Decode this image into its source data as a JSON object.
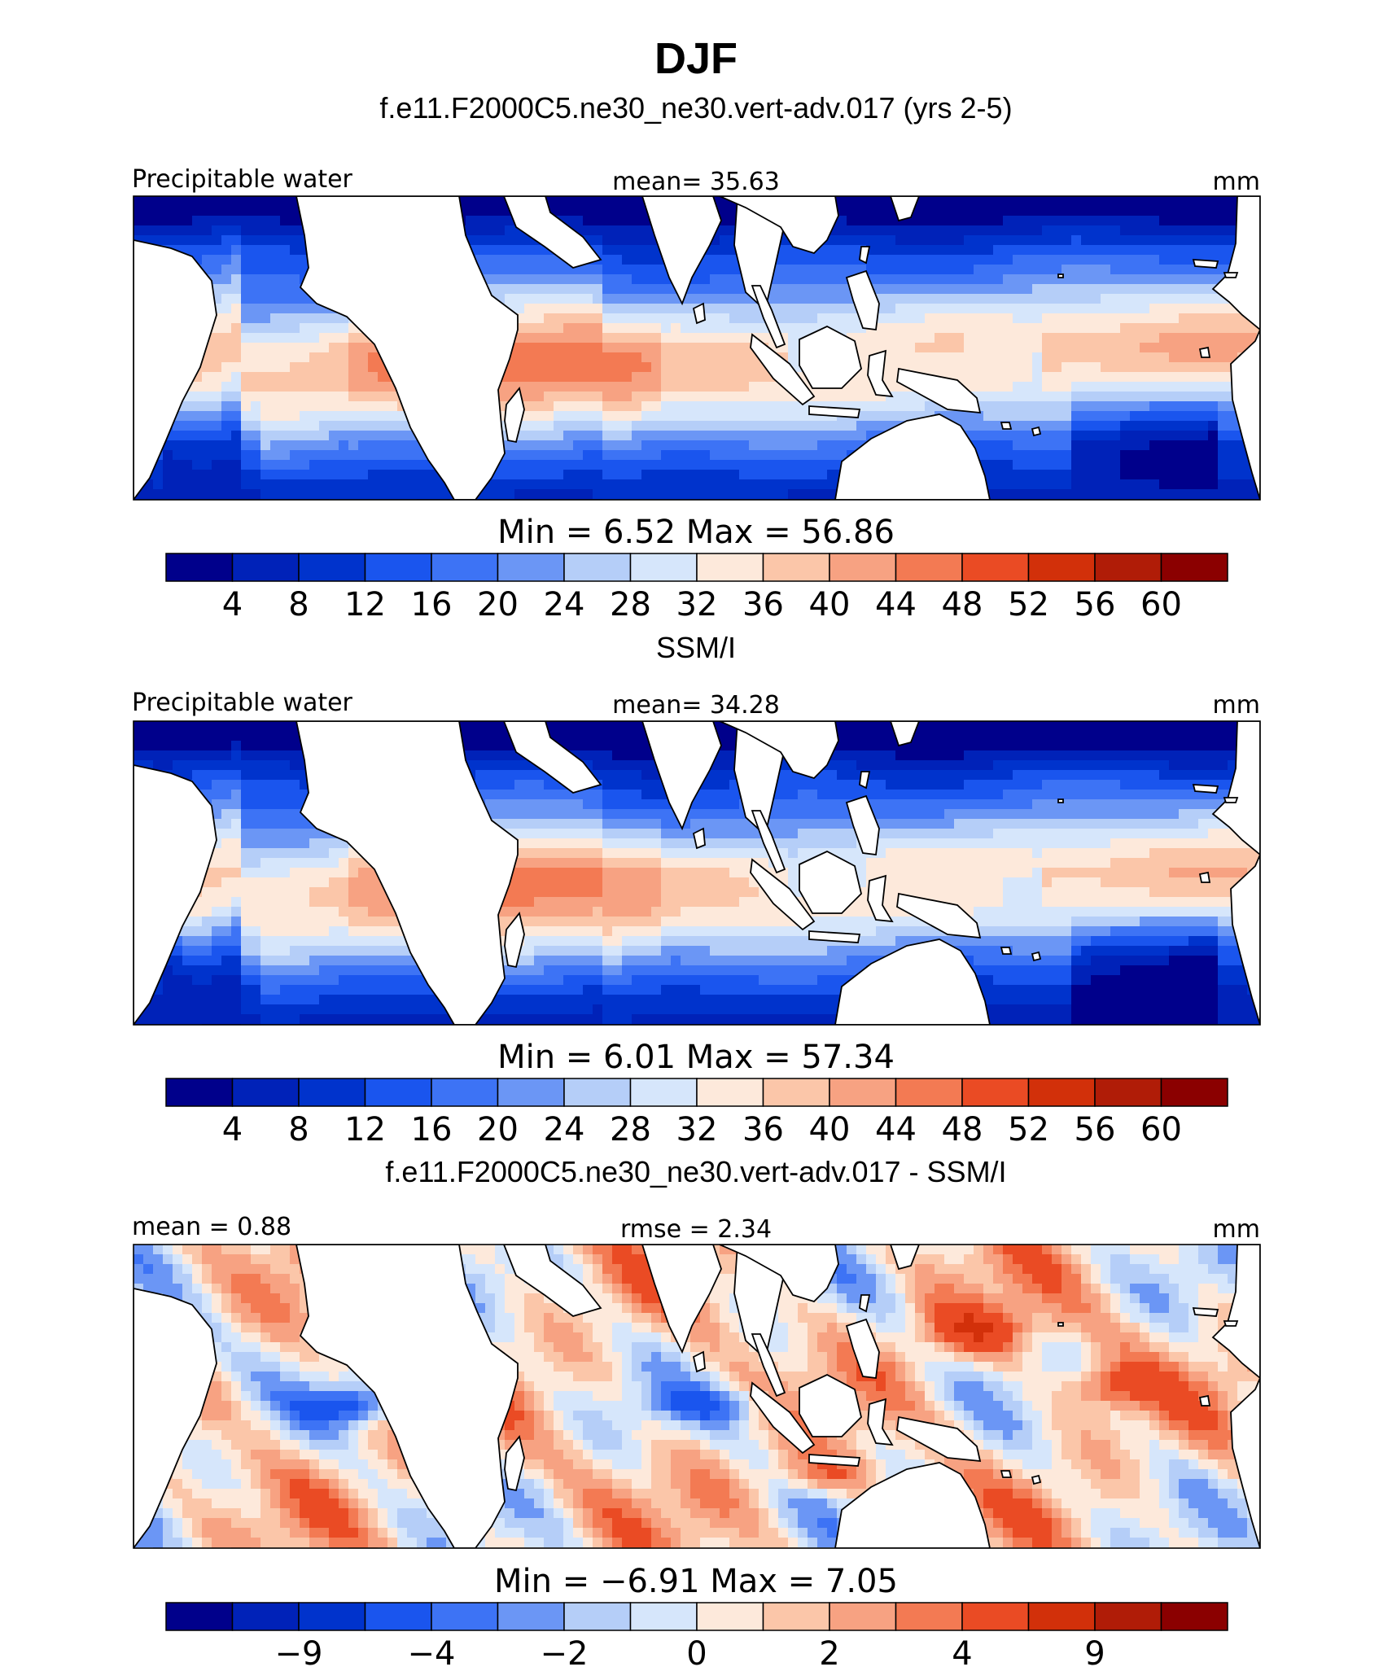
{
  "figure": {
    "title": "DJF"
  },
  "colors": {
    "palette": [
      "#00008b",
      "#0022b8",
      "#0033cc",
      "#1a55ee",
      "#3d73f5",
      "#6b96f5",
      "#b5cef8",
      "#d6e6fb",
      "#fde9db",
      "#fbc6a9",
      "#f7a282",
      "#f37a53",
      "#ea4b24",
      "#d2300a",
      "#b01c07",
      "#8b0000"
    ],
    "land": "#ffffff",
    "coast": "#000000"
  },
  "chart_data": [
    {
      "type": "heatmap",
      "title": "f.e11.F2000C5.ne30_ne30.vert-adv.017 (yrs 2-5)",
      "left_label": "Precipitable water",
      "center_label": "mean=   35.63",
      "right_label": "mm",
      "minmax_label": "Min  =      6.52  Max  =    56.86",
      "mean": 35.63,
      "min": 6.52,
      "max": 56.86,
      "units": "mm",
      "colorbar_levels": [
        4,
        8,
        12,
        16,
        20,
        24,
        28,
        32,
        36,
        40,
        44,
        48,
        52,
        56,
        60
      ],
      "colorbar_tick_labels": [
        "4",
        "8",
        "12",
        "16",
        "20",
        "24",
        "28",
        "32",
        "36",
        "40",
        "44",
        "48",
        "52",
        "56",
        "60"
      ]
    },
    {
      "type": "heatmap",
      "title": "SSM/I",
      "left_label": "Precipitable water",
      "center_label": "mean=   34.28",
      "right_label": "mm",
      "minmax_label": "Min  =      6.01  Max  =    57.34",
      "mean": 34.28,
      "min": 6.01,
      "max": 57.34,
      "units": "mm",
      "colorbar_levels": [
        4,
        8,
        12,
        16,
        20,
        24,
        28,
        32,
        36,
        40,
        44,
        48,
        52,
        56,
        60
      ],
      "colorbar_tick_labels": [
        "4",
        "8",
        "12",
        "16",
        "20",
        "24",
        "28",
        "32",
        "36",
        "40",
        "44",
        "48",
        "52",
        "56",
        "60"
      ]
    },
    {
      "type": "heatmap",
      "title": "f.e11.F2000C5.ne30_ne30.vert-adv.017 - SSM/I",
      "left_label": "mean =    0.88",
      "center_label": "rmse  =     2.34",
      "right_label": "mm",
      "minmax_label": "Min  =    −6.91  Max  =      7.05",
      "mean": 0.88,
      "rmse": 2.34,
      "min": -6.91,
      "max": 7.05,
      "units": "mm",
      "colorbar_levels": [
        -9,
        -4,
        -2,
        0,
        2,
        4,
        9
      ],
      "colorbar_tick_labels": [
        "−9",
        "−4",
        "−2",
        "0",
        "2",
        "4",
        "9"
      ]
    }
  ]
}
